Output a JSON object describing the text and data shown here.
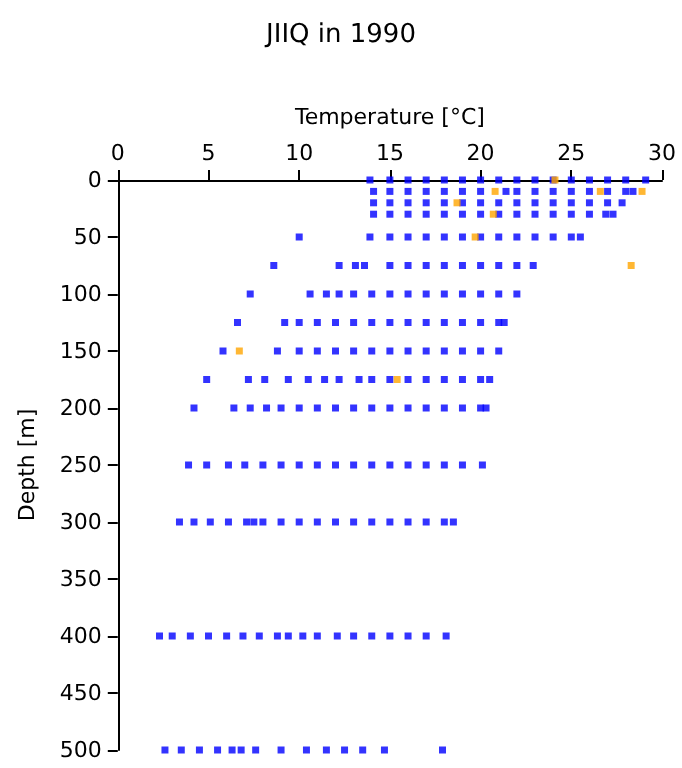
{
  "chart_data": {
    "type": "scatter",
    "title": "JIIQ in 1990",
    "xlabel": "Temperature [°C]",
    "ylabel": "Depth [m]",
    "xlim": [
      0,
      30
    ],
    "xticks": [
      0,
      5,
      10,
      15,
      20,
      25,
      30
    ],
    "ylim": [
      500,
      0
    ],
    "yticks": [
      0,
      50,
      100,
      150,
      200,
      250,
      300,
      350,
      400,
      450,
      500
    ],
    "grid": false,
    "marker": "square",
    "series": [
      {
        "color": "#0000ff",
        "x": [
          13.9,
          15,
          16,
          17,
          18,
          19,
          20,
          21,
          22,
          23,
          24,
          25,
          26,
          27,
          28,
          29.1
        ],
        "values": [
          0,
          0,
          0,
          0,
          0,
          0,
          0,
          0,
          0,
          0,
          0,
          0,
          0,
          0,
          0,
          0
        ]
      },
      {
        "color": "#0000ff",
        "x": [
          14.1,
          15,
          16,
          17,
          18,
          19,
          20,
          21.4,
          22,
          23,
          24,
          25,
          26,
          27,
          28,
          28.4
        ],
        "values": [
          10,
          10,
          10,
          10,
          10,
          10,
          10,
          10,
          10,
          10,
          10,
          10,
          10,
          10,
          10,
          10
        ]
      },
      {
        "color": "#0000ff",
        "x": [
          14.1,
          15,
          16,
          17,
          18,
          19,
          20,
          21,
          22,
          23,
          24,
          25,
          26,
          27,
          27.8
        ],
        "values": [
          20,
          20,
          20,
          20,
          20,
          20,
          20,
          20,
          20,
          20,
          20,
          20,
          20,
          20,
          20
        ]
      },
      {
        "color": "#0000ff",
        "x": [
          14.1,
          15,
          16,
          17,
          18,
          19,
          20,
          21,
          22,
          23,
          24,
          25,
          26,
          26.9,
          27.3
        ],
        "values": [
          30,
          30,
          30,
          30,
          30,
          30,
          30,
          30,
          30,
          30,
          30,
          30,
          30,
          30,
          30
        ]
      },
      {
        "color": "#0000ff",
        "x": [
          10,
          13.9,
          15,
          16,
          17,
          18,
          19,
          20,
          21,
          22,
          23,
          24,
          25,
          25.5
        ],
        "values": [
          50,
          50,
          50,
          50,
          50,
          50,
          50,
          50,
          50,
          50,
          50,
          50,
          50,
          50
        ]
      },
      {
        "color": "#0000ff",
        "x": [
          8.6,
          12.2,
          13.1,
          13.6,
          15,
          16,
          17,
          18,
          19,
          20,
          21,
          22,
          22.9
        ],
        "values": [
          75,
          75,
          75,
          75,
          75,
          75,
          75,
          75,
          75,
          75,
          75,
          75,
          75
        ]
      },
      {
        "color": "#0000ff",
        "x": [
          7.3,
          10.6,
          11.5,
          12.2,
          13,
          14,
          15,
          16,
          17,
          18,
          19,
          20,
          21,
          22
        ],
        "values": [
          100,
          100,
          100,
          100,
          100,
          100,
          100,
          100,
          100,
          100,
          100,
          100,
          100,
          100
        ]
      },
      {
        "color": "#0000ff",
        "x": [
          6.6,
          9.2,
          10,
          11,
          12,
          13,
          14,
          15,
          16,
          17,
          18,
          19,
          20,
          21,
          21.3
        ],
        "values": [
          125,
          125,
          125,
          125,
          125,
          125,
          125,
          125,
          125,
          125,
          125,
          125,
          125,
          125,
          125
        ]
      },
      {
        "color": "#0000ff",
        "x": [
          5.8,
          8.8,
          10,
          11,
          12,
          13,
          14,
          15,
          16,
          17,
          18,
          19,
          20,
          21
        ],
        "values": [
          150,
          150,
          150,
          150,
          150,
          150,
          150,
          150,
          150,
          150,
          150,
          150,
          150,
          150
        ]
      },
      {
        "color": "#0000ff",
        "x": [
          4.9,
          7.2,
          8.1,
          9.4,
          10.5,
          11.4,
          12.2,
          13.3,
          14,
          15,
          16,
          17,
          18,
          19,
          20,
          20.5
        ],
        "values": [
          175,
          175,
          175,
          175,
          175,
          175,
          175,
          175,
          175,
          175,
          175,
          175,
          175,
          175,
          175,
          175
        ]
      },
      {
        "color": "#0000ff",
        "x": [
          4.2,
          6.4,
          7.3,
          8.2,
          9,
          10,
          11,
          12,
          13,
          14,
          15,
          16,
          17,
          18,
          19,
          20,
          20.3
        ],
        "values": [
          200,
          200,
          200,
          200,
          200,
          200,
          200,
          200,
          200,
          200,
          200,
          200,
          200,
          200,
          200,
          200,
          200
        ]
      },
      {
        "color": "#0000ff",
        "x": [
          3.9,
          4.9,
          6.1,
          7,
          8,
          9,
          10,
          11,
          12,
          13,
          14,
          15,
          16,
          17,
          18,
          19,
          20.1
        ],
        "values": [
          250,
          250,
          250,
          250,
          250,
          250,
          250,
          250,
          250,
          250,
          250,
          250,
          250,
          250,
          250,
          250,
          250
        ]
      },
      {
        "color": "#0000ff",
        "x": [
          3.4,
          4.2,
          5.1,
          6.1,
          7.1,
          7.5,
          8,
          9,
          10,
          11,
          12,
          13,
          14,
          15,
          16,
          17,
          18,
          18.5
        ],
        "values": [
          300,
          300,
          300,
          300,
          300,
          300,
          300,
          300,
          300,
          300,
          300,
          300,
          300,
          300,
          300,
          300,
          300,
          300
        ]
      },
      {
        "color": "#0000ff",
        "x": [
          2.3,
          3,
          4,
          5,
          6,
          6.9,
          7.8,
          8.8,
          9.4,
          10.2,
          11,
          12.1,
          13,
          14,
          15,
          16,
          17,
          18.1
        ],
        "values": [
          400,
          400,
          400,
          400,
          400,
          400,
          400,
          400,
          400,
          400,
          400,
          400,
          400,
          400,
          400,
          400,
          400,
          400
        ]
      },
      {
        "color": "#0000ff",
        "x": [
          2.6,
          3.5,
          4.5,
          5.5,
          6.3,
          6.8,
          7.6,
          9,
          10.4,
          11.5,
          12.5,
          13.5,
          14.7,
          17.9
        ],
        "values": [
          500,
          500,
          500,
          500,
          500,
          500,
          500,
          500,
          500,
          500,
          500,
          500,
          500,
          500
        ]
      },
      {
        "color": "#ffa500",
        "x": [
          24.1,
          20.8,
          26.6,
          28.9,
          18.7,
          20.7,
          19.7,
          28.3,
          6.7,
          15.4
        ],
        "values": [
          0,
          10,
          10,
          10,
          20,
          30,
          50,
          75,
          150,
          175
        ]
      }
    ]
  }
}
